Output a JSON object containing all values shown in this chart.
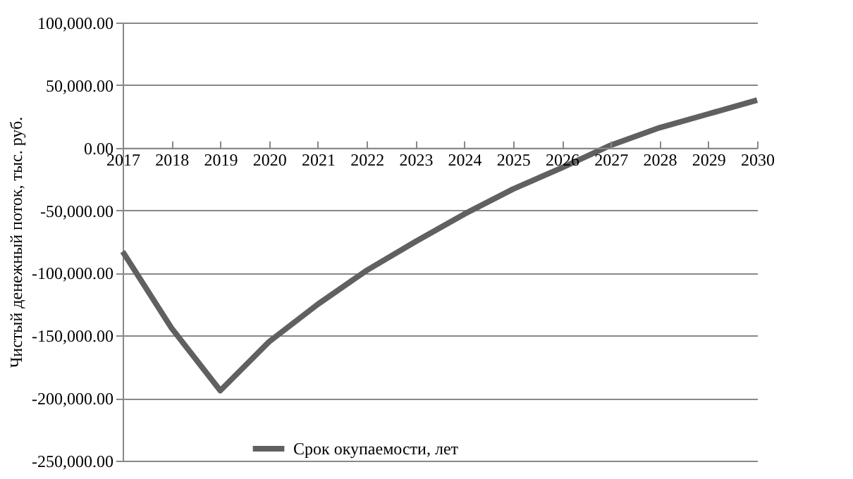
{
  "chart_data": {
    "type": "line",
    "ylabel": "Чистый денежный поток, тыс. руб.",
    "categories": [
      "2017",
      "2018",
      "2019",
      "2020",
      "2021",
      "2022",
      "2023",
      "2024",
      "2025",
      "2026",
      "2027",
      "2028",
      "2029",
      "2030"
    ],
    "series": [
      {
        "name": "Срок окупаемости, лет",
        "color": "#606060",
        "values": [
          -83000,
          -144000,
          -194000,
          -155000,
          -125000,
          -98000,
          -75000,
          -53000,
          -33000,
          -16000,
          2000,
          16000,
          27000,
          38000
        ]
      }
    ],
    "ylim": [
      -250000,
      100000
    ],
    "yticks": [
      {
        "value": -250000,
        "label": "-250,000.00"
      },
      {
        "value": -200000,
        "label": "-200,000.00"
      },
      {
        "value": -150000,
        "label": "-150,000.00"
      },
      {
        "value": -100000,
        "label": "-100,000.00"
      },
      {
        "value": -50000,
        "label": "-50,000.00"
      },
      {
        "value": 0,
        "label": "0.00"
      },
      {
        "value": 50000,
        "label": "50,000.00"
      },
      {
        "value": 100000,
        "label": "100,000.00"
      }
    ],
    "grid": "y",
    "legend": "bottom",
    "marker": "none",
    "line_style": "solid"
  }
}
